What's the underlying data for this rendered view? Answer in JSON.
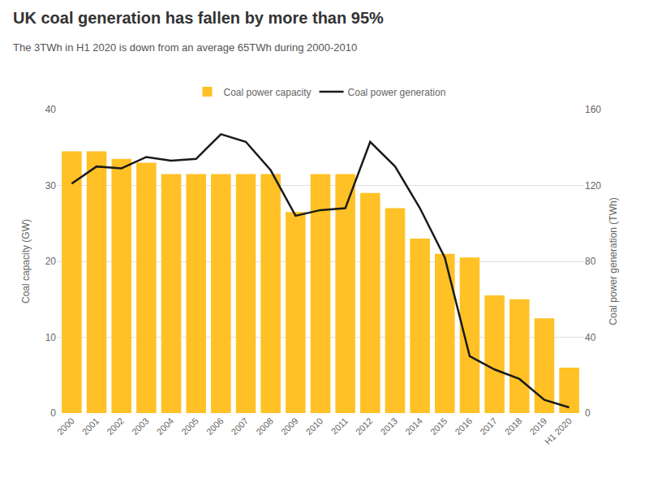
{
  "chart_data": {
    "type": "bar",
    "title": "UK coal generation has fallen by more than 95%",
    "subtitle": "The 3TWh in H1 2020 is down from an average 65TWh during 2000-2010",
    "categories": [
      "2000",
      "2001",
      "2002",
      "2003",
      "2004",
      "2005",
      "2006",
      "2007",
      "2008",
      "2009",
      "2010",
      "2011",
      "2012",
      "2013",
      "2014",
      "2015",
      "2016",
      "2017",
      "2018",
      "2019",
      "H1 2020"
    ],
    "series": [
      {
        "name": "Coal power capacity",
        "type": "bar",
        "color": "#FFC125",
        "values": [
          34.5,
          34.5,
          33.5,
          33.0,
          31.5,
          31.5,
          31.5,
          31.5,
          31.5,
          26.5,
          31.5,
          31.5,
          29.0,
          27.0,
          23.0,
          21.0,
          20.5,
          15.5,
          15.0,
          12.5,
          6.0
        ]
      },
      {
        "name": "Coal power generation",
        "type": "line",
        "color": "#1a1a1a",
        "axis": "y2",
        "values": [
          121,
          130,
          129,
          135,
          133,
          134,
          147,
          143,
          128,
          104,
          107,
          108,
          143,
          130,
          108,
          82,
          30,
          23,
          18,
          7,
          3
        ]
      }
    ],
    "ylabel": "Coal capacity (GW)",
    "y2label": "Coal power generation (TWh)",
    "ylim": [
      0,
      40
    ],
    "yticks": [
      0,
      10,
      20,
      30,
      40
    ],
    "y2lim": [
      0,
      160
    ],
    "y2ticks": [
      0,
      40,
      80,
      120,
      160
    ],
    "grid": true,
    "legend": "top"
  }
}
